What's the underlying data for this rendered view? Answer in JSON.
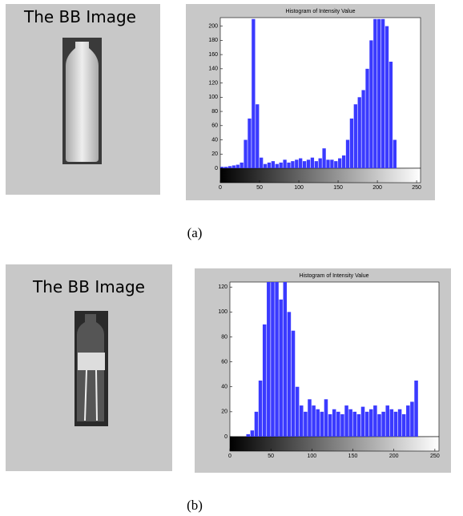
{
  "panels": [
    {
      "image_label": "The BB Image",
      "caption": "(a)"
    },
    {
      "image_label": "The BB Image",
      "caption": "(b)"
    }
  ],
  "chart_data": [
    {
      "type": "histogram",
      "title": "Histogram of Intensity Value",
      "color": "#3a3aff",
      "bins": [
        0,
        5,
        10,
        15,
        20,
        25,
        30,
        35,
        40,
        45,
        50,
        55,
        60,
        65,
        70,
        75,
        80,
        85,
        90,
        95,
        100,
        105,
        110,
        115,
        120,
        125,
        130,
        135,
        140,
        145,
        150,
        155,
        160,
        165,
        170,
        175,
        180,
        185,
        190,
        195,
        200,
        205,
        210,
        215,
        220,
        225,
        230,
        235,
        240,
        245,
        250,
        255
      ],
      "values": [
        2,
        2,
        3,
        4,
        5,
        8,
        40,
        70,
        210,
        90,
        15,
        6,
        8,
        10,
        6,
        8,
        12,
        8,
        10,
        12,
        14,
        10,
        12,
        15,
        10,
        14,
        28,
        12,
        12,
        10,
        14,
        18,
        40,
        70,
        90,
        100,
        110,
        140,
        180,
        210,
        210,
        210,
        200,
        150,
        40,
        0,
        0,
        0,
        0,
        0,
        0
      ],
      "xlim": [
        0,
        255
      ],
      "xticks": [
        0,
        50,
        100,
        150,
        200,
        250
      ],
      "ylim": [
        0,
        212
      ],
      "yticks": [
        0,
        20,
        40,
        60,
        80,
        100,
        120,
        140,
        160,
        180,
        200
      ]
    },
    {
      "type": "histogram",
      "title": "Histogram of Intensity Value",
      "color": "#3a3aff",
      "bins": [
        0,
        5,
        10,
        15,
        20,
        25,
        30,
        35,
        40,
        45,
        50,
        55,
        60,
        65,
        70,
        75,
        80,
        85,
        90,
        95,
        100,
        105,
        110,
        115,
        120,
        125,
        130,
        135,
        140,
        145,
        150,
        155,
        160,
        165,
        170,
        175,
        180,
        185,
        190,
        195,
        200,
        205,
        210,
        215,
        220,
        225,
        230,
        235,
        240,
        245,
        250,
        255
      ],
      "values": [
        0,
        0,
        0,
        0,
        2,
        5,
        20,
        45,
        90,
        125,
        125,
        125,
        110,
        125,
        100,
        85,
        40,
        25,
        20,
        30,
        25,
        22,
        20,
        30,
        18,
        22,
        20,
        18,
        25,
        22,
        20,
        18,
        24,
        20,
        22,
        25,
        18,
        20,
        25,
        22,
        20,
        22,
        18,
        25,
        28,
        45,
        0,
        0,
        0,
        0,
        0
      ],
      "xlim": [
        0,
        255
      ],
      "xticks": [
        0,
        50,
        100,
        150,
        200,
        250
      ],
      "ylim": [
        0,
        124
      ],
      "yticks": [
        0,
        20,
        40,
        60,
        80,
        100,
        120
      ]
    }
  ]
}
